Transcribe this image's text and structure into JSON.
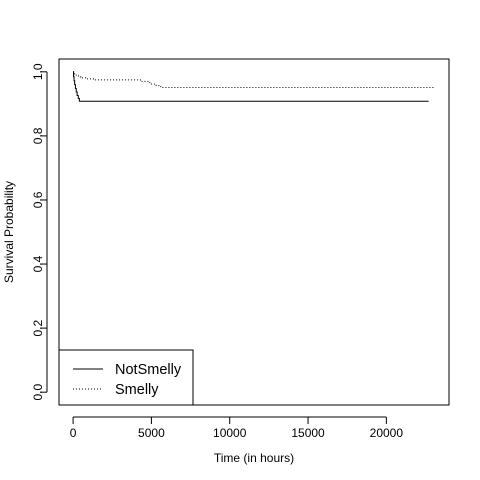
{
  "chart_data": {
    "type": "line",
    "title": "",
    "xlabel": "Time (in hours)",
    "ylabel": "Survival Probability",
    "xlim": [
      -900,
      24000
    ],
    "ylim": [
      -0.04,
      1.04
    ],
    "x_ticks": [
      0,
      5000,
      10000,
      15000,
      20000
    ],
    "x_tick_labels": [
      "0",
      "5000",
      "10000",
      "15000",
      "20000"
    ],
    "y_ticks": [
      0.0,
      0.2,
      0.4,
      0.6,
      0.8,
      1.0
    ],
    "y_tick_labels": [
      "0.0",
      "0.2",
      "0.4",
      "0.6",
      "0.8",
      "1.0"
    ],
    "grid": false,
    "legend_position": "bottom-left",
    "series": [
      {
        "name": "NotSmelly",
        "line_style": "solid",
        "color": "#000000",
        "x": [
          0,
          30,
          60,
          100,
          150,
          200,
          260,
          330,
          400,
          22700
        ],
        "y": [
          1.0,
          0.985,
          0.972,
          0.96,
          0.948,
          0.937,
          0.926,
          0.917,
          0.908,
          0.908
        ]
      },
      {
        "name": "Smelly",
        "line_style": "dotted",
        "color": "#000000",
        "x": [
          0,
          100,
          200,
          350,
          500,
          800,
          1300,
          3900,
          4300,
          4900,
          5300,
          5600,
          23100
        ],
        "y": [
          1.0,
          0.993,
          0.987,
          0.984,
          0.981,
          0.978,
          0.975,
          0.975,
          0.97,
          0.962,
          0.957,
          0.951,
          0.951
        ]
      }
    ]
  }
}
